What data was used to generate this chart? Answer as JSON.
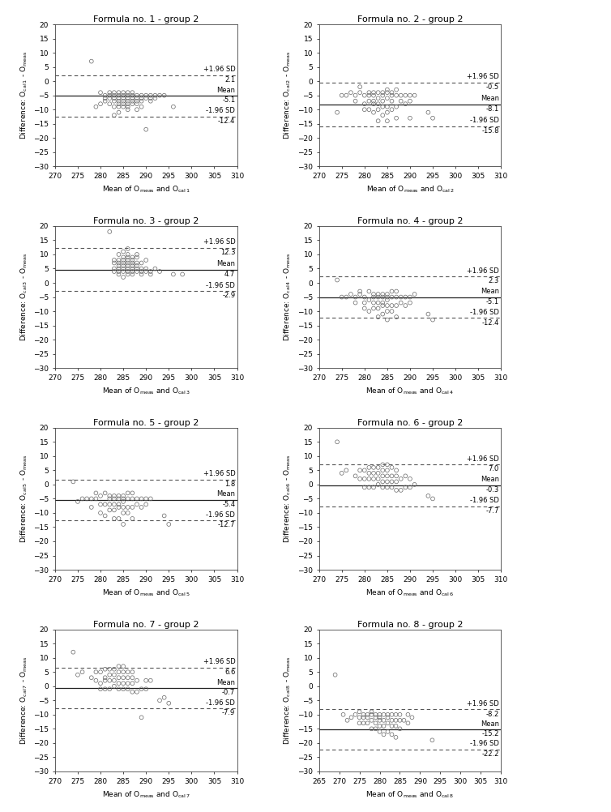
{
  "plots": [
    {
      "title": "Formula no. 1 - group 2",
      "mean_line": -5.1,
      "upper_loa": 2.1,
      "lower_loa": -12.4,
      "xlabel_sub": "1",
      "xlim": [
        270,
        310
      ],
      "ylim": [
        -30,
        20
      ],
      "yticks": [
        -30,
        -25,
        -20,
        -15,
        -10,
        -5,
        0,
        5,
        10,
        15,
        20
      ],
      "xticks": [
        270,
        275,
        280,
        285,
        290,
        295,
        300,
        305,
        310
      ],
      "annot_upper_sd": "+1.96 SD",
      "annot_upper_val": "2.1",
      "annot_mean": "Mean",
      "annot_mean_val": "-5.1",
      "annot_lower_sd": "-1.96 SD",
      "annot_lower_val": "-12.4",
      "scatter_x": [
        278,
        279,
        280,
        280,
        281,
        281,
        281,
        282,
        282,
        282,
        282,
        283,
        283,
        283,
        283,
        283,
        283,
        284,
        284,
        284,
        284,
        284,
        284,
        284,
        285,
        285,
        285,
        285,
        285,
        285,
        286,
        286,
        286,
        286,
        286,
        286,
        286,
        287,
        287,
        287,
        287,
        287,
        288,
        288,
        288,
        288,
        288,
        289,
        289,
        289,
        289,
        290,
        290,
        290,
        291,
        291,
        291,
        292,
        292,
        293,
        294,
        296
      ],
      "scatter_y": [
        7,
        -9,
        -4,
        -8,
        -5,
        -6,
        -7,
        -4,
        -5,
        -6,
        -8,
        -4,
        -5,
        -6,
        -7,
        -9,
        -12,
        -4,
        -5,
        -6,
        -7,
        -8,
        -9,
        -11,
        -4,
        -5,
        -6,
        -7,
        -8,
        -9,
        -4,
        -5,
        -6,
        -7,
        -8,
        -9,
        -10,
        -4,
        -5,
        -6,
        -7,
        -8,
        -5,
        -6,
        -7,
        -8,
        -10,
        -5,
        -6,
        -7,
        -9,
        -5,
        -6,
        -17,
        -5,
        -6,
        -7,
        -5,
        -6,
        -5,
        -5,
        -9
      ]
    },
    {
      "title": "Formula no. 2 - group 2",
      "mean_line": -8.1,
      "upper_loa": -0.5,
      "lower_loa": -15.8,
      "xlabel_sub": "2",
      "xlim": [
        270,
        310
      ],
      "ylim": [
        -30,
        20
      ],
      "yticks": [
        -30,
        -25,
        -20,
        -15,
        -10,
        -5,
        0,
        5,
        10,
        15,
        20
      ],
      "xticks": [
        270,
        275,
        280,
        285,
        290,
        295,
        300,
        305,
        310
      ],
      "annot_upper_sd": "+1.96 SD",
      "annot_upper_val": "-0.5",
      "annot_mean": "Mean",
      "annot_mean_val": "-8.1",
      "annot_lower_sd": "-1.96 SD",
      "annot_lower_val": "-15.8",
      "scatter_x": [
        274,
        275,
        276,
        277,
        278,
        278,
        279,
        279,
        280,
        280,
        280,
        281,
        281,
        281,
        281,
        282,
        282,
        282,
        282,
        282,
        283,
        283,
        283,
        283,
        283,
        284,
        284,
        284,
        284,
        284,
        285,
        285,
        285,
        285,
        285,
        285,
        286,
        286,
        286,
        286,
        287,
        287,
        287,
        287,
        288,
        288,
        289,
        289,
        290,
        290,
        290,
        291,
        294,
        295
      ],
      "scatter_y": [
        -11,
        -5,
        -5,
        -4,
        -5,
        -7,
        -2,
        -4,
        -5,
        -8,
        -10,
        -4,
        -5,
        -7,
        -10,
        -4,
        -5,
        -7,
        -8,
        -11,
        -4,
        -6,
        -8,
        -10,
        -14,
        -4,
        -5,
        -7,
        -9,
        -12,
        -3,
        -4,
        -6,
        -9,
        -11,
        -14,
        -4,
        -5,
        -7,
        -10,
        -3,
        -5,
        -9,
        -13,
        -5,
        -7,
        -5,
        -8,
        -5,
        -7,
        -13,
        -5,
        -11,
        -13
      ]
    },
    {
      "title": "Formula no. 3 - group 2",
      "mean_line": 4.7,
      "upper_loa": 12.3,
      "lower_loa": -2.9,
      "xlabel_sub": "3",
      "xlim": [
        270,
        310
      ],
      "ylim": [
        -30,
        20
      ],
      "yticks": [
        -30,
        -25,
        -20,
        -15,
        -10,
        -5,
        0,
        5,
        10,
        15,
        20
      ],
      "xticks": [
        270,
        275,
        280,
        285,
        290,
        295,
        300,
        305,
        310
      ],
      "annot_upper_sd": "+1.96 SD",
      "annot_upper_val": "12.3",
      "annot_mean": "Mean",
      "annot_mean_val": "4.7",
      "annot_lower_sd": "-1.96 SD",
      "annot_lower_val": "-2.9",
      "scatter_x": [
        282,
        283,
        283,
        283,
        283,
        284,
        284,
        284,
        284,
        284,
        284,
        284,
        285,
        285,
        285,
        285,
        285,
        285,
        285,
        285,
        286,
        286,
        286,
        286,
        286,
        286,
        286,
        286,
        286,
        287,
        287,
        287,
        287,
        287,
        287,
        287,
        288,
        288,
        288,
        288,
        288,
        288,
        289,
        289,
        289,
        289,
        290,
        290,
        290,
        291,
        291,
        292,
        293,
        296,
        298
      ],
      "scatter_y": [
        18,
        4,
        5,
        7,
        8,
        3,
        4,
        5,
        6,
        7,
        8,
        10,
        2,
        4,
        5,
        6,
        7,
        8,
        9,
        11,
        3,
        4,
        5,
        6,
        7,
        8,
        9,
        10,
        12,
        3,
        4,
        5,
        6,
        7,
        8,
        9,
        4,
        5,
        6,
        7,
        9,
        10,
        3,
        4,
        5,
        7,
        4,
        5,
        8,
        3,
        4,
        5,
        4,
        3,
        3
      ]
    },
    {
      "title": "Formula no. 4 - group 2",
      "mean_line": -5.1,
      "upper_loa": 2.3,
      "lower_loa": -12.4,
      "xlabel_sub": "4",
      "xlim": [
        270,
        310
      ],
      "ylim": [
        -30,
        20
      ],
      "yticks": [
        -30,
        -25,
        -20,
        -15,
        -10,
        -5,
        0,
        5,
        10,
        15,
        20
      ],
      "xticks": [
        270,
        275,
        280,
        285,
        290,
        295,
        300,
        305,
        310
      ],
      "annot_upper_sd": "+1.96 SD",
      "annot_upper_val": "2.3",
      "annot_mean": "Mean",
      "annot_mean_val": "-5.1",
      "annot_lower_sd": "-1.96 SD",
      "annot_lower_val": "-12.4",
      "scatter_x": [
        274,
        275,
        276,
        277,
        278,
        278,
        279,
        279,
        280,
        280,
        280,
        281,
        281,
        281,
        282,
        282,
        282,
        282,
        283,
        283,
        283,
        283,
        283,
        284,
        284,
        284,
        284,
        284,
        285,
        285,
        285,
        285,
        285,
        285,
        286,
        286,
        286,
        286,
        287,
        287,
        287,
        287,
        288,
        288,
        289,
        289,
        290,
        290,
        291,
        294,
        295
      ],
      "scatter_y": [
        1,
        -5,
        -5,
        -4,
        -5,
        -7,
        -3,
        -4,
        -5,
        -7,
        -9,
        -3,
        -6,
        -10,
        -4,
        -5,
        -7,
        -9,
        -4,
        -5,
        -7,
        -9,
        -12,
        -4,
        -5,
        -7,
        -8,
        -11,
        -4,
        -5,
        -6,
        -8,
        -10,
        -13,
        -3,
        -5,
        -8,
        -10,
        -3,
        -5,
        -8,
        -12,
        -5,
        -7,
        -5,
        -8,
        -5,
        -7,
        -4,
        -11,
        -13
      ]
    },
    {
      "title": "Formula no. 5 - group 2",
      "mean_line": -5.4,
      "upper_loa": 1.8,
      "lower_loa": -12.7,
      "xlabel_sub": "5",
      "xlim": [
        270,
        310
      ],
      "ylim": [
        -30,
        20
      ],
      "yticks": [
        -30,
        -25,
        -20,
        -15,
        -10,
        -5,
        0,
        5,
        10,
        15,
        20
      ],
      "xticks": [
        270,
        275,
        280,
        285,
        290,
        295,
        300,
        305,
        310
      ],
      "annot_upper_sd": "+1.96 SD",
      "annot_upper_val": "1.8",
      "annot_mean": "Mean",
      "annot_mean_val": "-5.4",
      "annot_lower_sd": "-1.96 SD",
      "annot_lower_val": "-12.7",
      "scatter_x": [
        274,
        275,
        276,
        277,
        278,
        278,
        279,
        279,
        280,
        280,
        280,
        281,
        281,
        281,
        282,
        282,
        282,
        282,
        283,
        283,
        283,
        283,
        283,
        284,
        284,
        284,
        284,
        284,
        285,
        285,
        285,
        285,
        285,
        285,
        286,
        286,
        286,
        286,
        287,
        287,
        287,
        287,
        288,
        288,
        289,
        289,
        290,
        290,
        291,
        294,
        295
      ],
      "scatter_y": [
        1,
        -6,
        -5,
        -5,
        -5,
        -8,
        -3,
        -5,
        -4,
        -7,
        -10,
        -3,
        -7,
        -11,
        -4,
        -5,
        -7,
        -9,
        -4,
        -5,
        -7,
        -9,
        -12,
        -4,
        -5,
        -7,
        -8,
        -12,
        -4,
        -5,
        -6,
        -8,
        -10,
        -14,
        -3,
        -5,
        -8,
        -10,
        -3,
        -5,
        -8,
        -12,
        -5,
        -7,
        -5,
        -8,
        -5,
        -7,
        -5,
        -11,
        -14
      ]
    },
    {
      "title": "Formula no. 6 - group 2",
      "mean_line": -0.3,
      "upper_loa": 7.0,
      "lower_loa": -7.7,
      "xlabel_sub": "6",
      "xlim": [
        270,
        310
      ],
      "ylim": [
        -30,
        20
      ],
      "yticks": [
        -30,
        -25,
        -20,
        -15,
        -10,
        -5,
        0,
        5,
        10,
        15,
        20
      ],
      "xticks": [
        270,
        275,
        280,
        285,
        290,
        295,
        300,
        305,
        310
      ],
      "annot_upper_sd": "+1.96 SD",
      "annot_upper_val": "7.0",
      "annot_mean": "Mean",
      "annot_mean_val": "-0.3",
      "annot_lower_sd": "-1.96 SD",
      "annot_lower_val": "-7.7",
      "scatter_x": [
        274,
        275,
        276,
        278,
        279,
        279,
        280,
        280,
        280,
        281,
        281,
        281,
        281,
        282,
        282,
        282,
        282,
        283,
        283,
        283,
        283,
        284,
        284,
        284,
        284,
        284,
        285,
        285,
        285,
        285,
        285,
        286,
        286,
        286,
        286,
        287,
        287,
        287,
        287,
        288,
        288,
        289,
        289,
        290,
        290,
        291,
        294,
        295
      ],
      "scatter_y": [
        15,
        4,
        5,
        3,
        2,
        5,
        -1,
        2,
        5,
        -1,
        2,
        4,
        6,
        -1,
        2,
        4,
        6,
        0,
        2,
        4,
        6,
        -1,
        1,
        3,
        5,
        7,
        -1,
        1,
        3,
        5,
        7,
        -1,
        1,
        3,
        6,
        -2,
        1,
        3,
        5,
        -2,
        2,
        -1,
        3,
        -1,
        2,
        0,
        -4,
        -5
      ]
    },
    {
      "title": "Formula no. 7 - group 2",
      "mean_line": -0.7,
      "upper_loa": 6.6,
      "lower_loa": -7.9,
      "xlabel_sub": "7",
      "xlim": [
        270,
        310
      ],
      "ylim": [
        -30,
        20
      ],
      "yticks": [
        -30,
        -25,
        -20,
        -15,
        -10,
        -5,
        0,
        5,
        10,
        15,
        20
      ],
      "xticks": [
        270,
        275,
        280,
        285,
        290,
        295,
        300,
        305,
        310
      ],
      "annot_upper_sd": "+1.96 SD",
      "annot_upper_val": "6.6",
      "annot_mean": "Mean",
      "annot_mean_val": "-0.7",
      "annot_lower_sd": "-1.96 SD",
      "annot_lower_val": "-7.9",
      "scatter_x": [
        274,
        275,
        276,
        278,
        279,
        279,
        280,
        280,
        280,
        281,
        281,
        281,
        281,
        282,
        282,
        282,
        282,
        283,
        283,
        283,
        283,
        284,
        284,
        284,
        284,
        284,
        285,
        285,
        285,
        285,
        285,
        286,
        286,
        286,
        286,
        287,
        287,
        287,
        287,
        288,
        288,
        289,
        289,
        290,
        290,
        291,
        293,
        294,
        295
      ],
      "scatter_y": [
        12,
        4,
        5,
        3,
        2,
        5,
        -1,
        1,
        5,
        -1,
        2,
        3,
        6,
        -1,
        2,
        4,
        6,
        0,
        2,
        4,
        6,
        -1,
        1,
        3,
        5,
        7,
        -1,
        1,
        3,
        5,
        7,
        -1,
        1,
        3,
        5,
        -2,
        1,
        3,
        5,
        -2,
        2,
        -11,
        -1,
        2,
        -1,
        2,
        -5,
        -4,
        -6
      ]
    },
    {
      "title": "Formula no. 8 - group 2",
      "mean_line": -15.2,
      "upper_loa": -8.2,
      "lower_loa": -22.2,
      "xlabel_sub": "8",
      "xlim": [
        265,
        310
      ],
      "ylim": [
        -30,
        20
      ],
      "yticks": [
        -30,
        -25,
        -20,
        -15,
        -10,
        -5,
        0,
        5,
        10,
        15,
        20
      ],
      "xticks": [
        265,
        270,
        275,
        280,
        285,
        290,
        295,
        300,
        305,
        310
      ],
      "annot_upper_sd": "+1.96 SD",
      "annot_upper_val": "-8.2",
      "annot_mean": "Mean",
      "annot_mean_val": "-15.2",
      "annot_lower_sd": "-1.96 SD",
      "annot_lower_val": "-22.2",
      "scatter_x": [
        269,
        271,
        272,
        273,
        274,
        275,
        275,
        275,
        276,
        276,
        276,
        277,
        277,
        277,
        278,
        278,
        278,
        278,
        279,
        279,
        279,
        279,
        280,
        280,
        280,
        280,
        280,
        281,
        281,
        281,
        281,
        282,
        282,
        282,
        282,
        283,
        283,
        283,
        283,
        284,
        284,
        284,
        284,
        285,
        285,
        285,
        286,
        287,
        287,
        288,
        293
      ],
      "scatter_y": [
        4,
        -10,
        -12,
        -11,
        -10,
        -9,
        -11,
        -13,
        -10,
        -11,
        -13,
        -10,
        -11,
        -13,
        -9,
        -10,
        -12,
        -15,
        -10,
        -11,
        -13,
        -15,
        -10,
        -11,
        -12,
        -14,
        -16,
        -10,
        -12,
        -14,
        -17,
        -10,
        -11,
        -13,
        -16,
        -10,
        -12,
        -14,
        -17,
        -10,
        -12,
        -14,
        -18,
        -10,
        -12,
        -15,
        -12,
        -10,
        -13,
        -11,
        -19
      ]
    }
  ],
  "figure_bg": "#ffffff",
  "plot_bg": "#ffffff",
  "marker_edge_color": "#666666",
  "mean_line_color": "#222222",
  "loa_line_color": "#555555",
  "fontsize_title": 8,
  "fontsize_labels": 6.5,
  "fontsize_ticks": 6.5,
  "fontsize_annot": 6.0
}
